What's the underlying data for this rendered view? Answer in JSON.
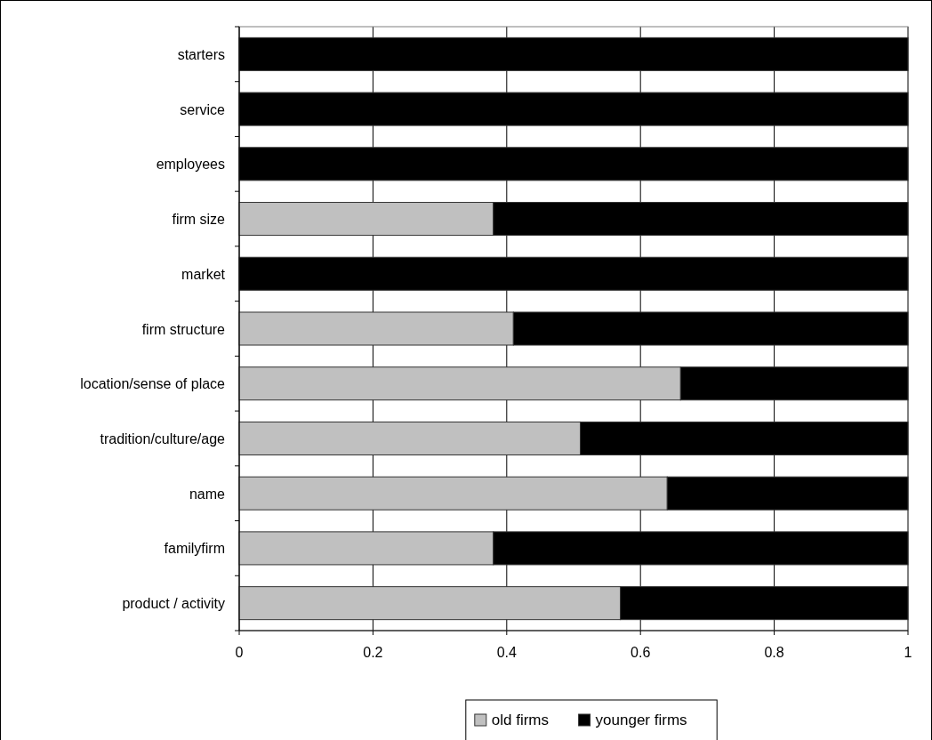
{
  "chart_data": {
    "type": "bar",
    "orientation": "horizontal",
    "stacked": true,
    "categories": [
      "starters",
      "service",
      "employees",
      "firm size",
      "market",
      "firm structure",
      "location/sense of place",
      "tradition/culture/age",
      "name",
      "familyfirm",
      "product / activity"
    ],
    "series": [
      {
        "name": "old firms",
        "color": "#c0c0c0",
        "values": [
          0,
          0,
          0,
          0.38,
          0,
          0.41,
          0.66,
          0.51,
          0.64,
          0.38,
          0.57
        ]
      },
      {
        "name": "younger firms",
        "color": "#000000",
        "values": [
          1,
          1,
          1,
          0.62,
          1,
          0.59,
          0.34,
          0.49,
          0.36,
          0.62,
          0.43
        ]
      }
    ],
    "xlim": [
      0,
      1
    ],
    "xticks": [
      0,
      0.2,
      0.4,
      0.6,
      0.8,
      1
    ],
    "grid": "x",
    "legend": "bottom"
  }
}
